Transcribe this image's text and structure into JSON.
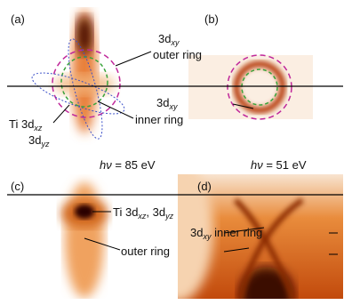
{
  "panels": [
    {
      "label": "(a)",
      "photon": {
        "symbol": "hν",
        "text": " = 85 eV"
      },
      "annotations": [
        {
          "main": "3d",
          "sub": "xy",
          "rest": "outer ring"
        },
        {
          "main": "3d",
          "sub": "xy",
          "rest": "inner ring"
        },
        {
          "main": "Ti 3d",
          "sub": "xz",
          "main2": "3d",
          "sub2": "yz"
        }
      ]
    },
    {
      "label": "(b)",
      "photon": {
        "symbol": "hν",
        "text": " = 51 eV"
      }
    },
    {
      "label": "(c)",
      "annotations": [
        {
          "main": "Ti 3d",
          "sub": "xz",
          "mid": ", 3d",
          "sub2": "yz"
        },
        {
          "rest": "outer ring"
        }
      ]
    },
    {
      "label": "(d)",
      "annotations": [
        {
          "main": "3d",
          "sub": "xy",
          "rest": " inner ring"
        }
      ]
    }
  ]
}
